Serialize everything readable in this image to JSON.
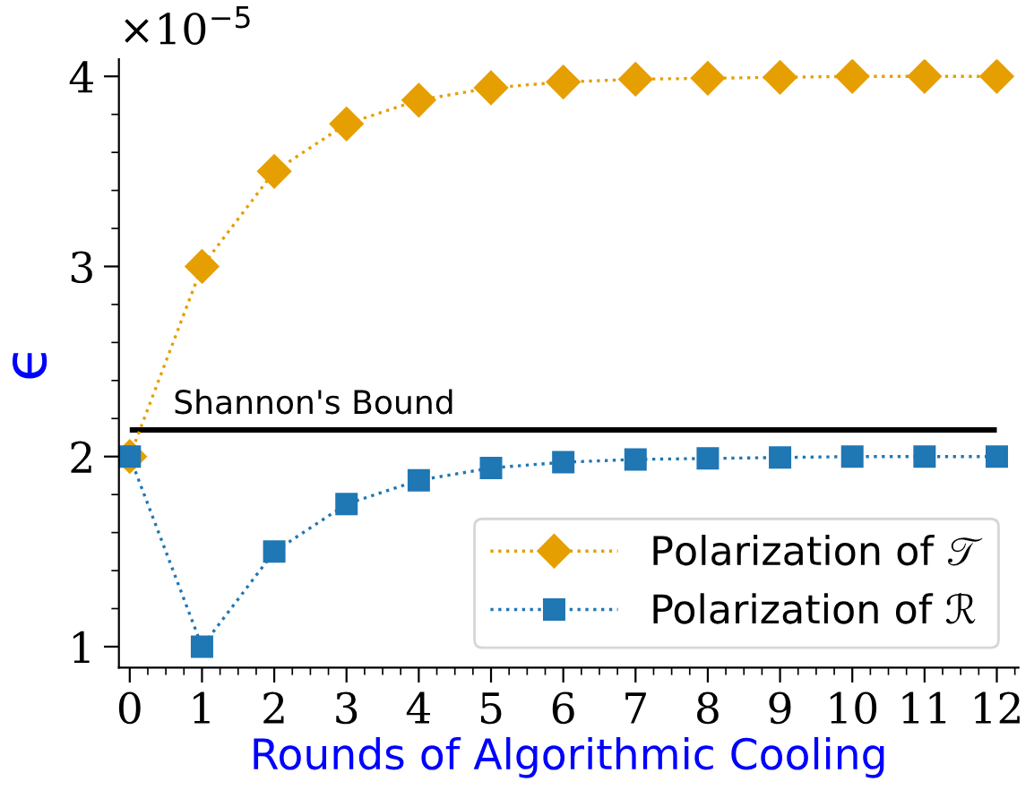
{
  "chart_data": {
    "type": "line",
    "xlabel": "Rounds of Algorithmic Cooling",
    "ylabel": "ϵ",
    "x": [
      0,
      1,
      2,
      3,
      4,
      5,
      6,
      7,
      8,
      9,
      10,
      11,
      12
    ],
    "series": [
      {
        "name": "Polarization of 𝒯",
        "color": "#e69f00",
        "marker": "diamond",
        "line_style": "dotted",
        "values": [
          2,
          3,
          3.5,
          3.75,
          3.875,
          3.94,
          3.97,
          3.985,
          3.99,
          3.995,
          4,
          4,
          4
        ]
      },
      {
        "name": "Polarization of ℛ",
        "color": "#1f77b4",
        "marker": "square",
        "line_style": "dotted",
        "values": [
          2,
          1,
          1.5,
          1.75,
          1.875,
          1.94,
          1.97,
          1.985,
          1.99,
          1.995,
          2,
          2,
          2
        ]
      }
    ],
    "xlim": [
      -0.15,
      12.3
    ],
    "xticks": [
      0,
      1,
      2,
      3,
      4,
      5,
      6,
      7,
      8,
      9,
      10,
      11,
      12
    ],
    "ylim": [
      0.89,
      4.09
    ],
    "yticks": [
      1,
      2,
      3,
      4
    ],
    "ref_lines": [
      {
        "axis": "y",
        "value": 2.14,
        "label": "Shannon's Bound",
        "color": "#000000"
      }
    ],
    "annotations": [
      "×10$^{−5}$"
    ],
    "legend": "bottom right",
    "grid": false
  }
}
